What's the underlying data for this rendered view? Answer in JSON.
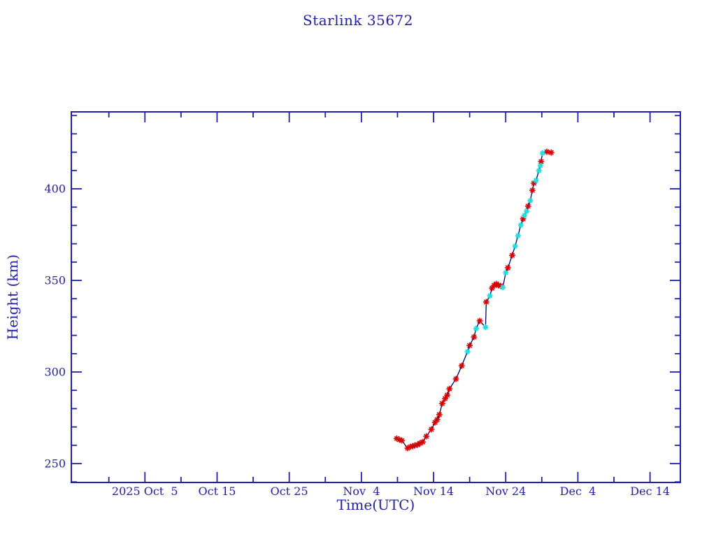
{
  "window": {
    "title": "Starlink 35672"
  },
  "chart_data": {
    "type": "line",
    "title": "Starlink 35672",
    "xlabel": "Time(UTC)",
    "ylabel": "Height (km)",
    "grid": false,
    "legend": null,
    "x_axis": {
      "units": "days relative to 2025 Oct 5 00:00 UTC",
      "min": -10.2,
      "max": 74.2,
      "major_tick_step_days": 10,
      "minor_tick_step_days": 5,
      "major_ticks": [
        {
          "day": 0,
          "label": "2025 Oct  5"
        },
        {
          "day": 10,
          "label": "Oct 15"
        },
        {
          "day": 20,
          "label": "Oct 25"
        },
        {
          "day": 30,
          "label": "Nov  4"
        },
        {
          "day": 40,
          "label": "Nov 14"
        },
        {
          "day": 50,
          "label": "Nov 24"
        },
        {
          "day": 60,
          "label": "Dec  4"
        },
        {
          "day": 70,
          "label": "Dec 14"
        }
      ]
    },
    "y_axis": {
      "units": "km",
      "min": 239.7,
      "max": 442.0,
      "major_ticks": [
        250,
        300,
        350,
        400
      ],
      "minor_tick_step": 10
    },
    "colors": {
      "background": "#ffffff",
      "axis": "#2020a8",
      "labels": "#2020a8",
      "line": "#000066",
      "red": "#d60000",
      "cyan": "#2adbdb"
    },
    "line_connects_all_points_in_time_order": true,
    "series_legend": [
      {
        "name": "red-asterisk-points",
        "marker": "asterisk",
        "color_key": "red"
      },
      {
        "name": "cyan-tracking-points",
        "marker": "asterisk-dot",
        "color_key": "cyan"
      }
    ],
    "points": [
      {
        "day": 34.9,
        "km": 263.7,
        "series": "red"
      },
      {
        "day": 35.3,
        "km": 263.0,
        "series": "red"
      },
      {
        "day": 35.6,
        "km": 262.6,
        "series": "red"
      },
      {
        "day": 36.4,
        "km": 258.4,
        "series": "red"
      },
      {
        "day": 36.8,
        "km": 259.2,
        "series": "red"
      },
      {
        "day": 37.1,
        "km": 259.5,
        "series": "red"
      },
      {
        "day": 37.4,
        "km": 259.9,
        "series": "red"
      },
      {
        "day": 37.8,
        "km": 260.3,
        "series": "red"
      },
      {
        "day": 38.1,
        "km": 261.1,
        "series": "red"
      },
      {
        "day": 38.5,
        "km": 261.8,
        "series": "red"
      },
      {
        "day": 39.0,
        "km": 264.9,
        "series": "red"
      },
      {
        "day": 39.7,
        "km": 268.7,
        "series": "red"
      },
      {
        "day": 40.2,
        "km": 272.5,
        "series": "red"
      },
      {
        "day": 40.5,
        "km": 274.0,
        "series": "red"
      },
      {
        "day": 40.8,
        "km": 276.7,
        "series": "red"
      },
      {
        "day": 41.2,
        "km": 282.8,
        "series": "red"
      },
      {
        "day": 41.6,
        "km": 285.5,
        "series": "red"
      },
      {
        "day": 41.9,
        "km": 287.4,
        "series": "red"
      },
      {
        "day": 42.2,
        "km": 290.8,
        "series": "red"
      },
      {
        "day": 43.1,
        "km": 296.2,
        "series": "red"
      },
      {
        "day": 43.9,
        "km": 303.4,
        "series": "red"
      },
      {
        "day": 44.7,
        "km": 311.1,
        "series": "cyan"
      },
      {
        "day": 45.0,
        "km": 314.5,
        "series": "red"
      },
      {
        "day": 45.6,
        "km": 319.1,
        "series": "red"
      },
      {
        "day": 45.9,
        "km": 323.7,
        "series": "cyan"
      },
      {
        "day": 46.4,
        "km": 327.9,
        "series": "red"
      },
      {
        "day": 47.2,
        "km": 324.4,
        "series": "cyan"
      },
      {
        "day": 47.3,
        "km": 338.2,
        "series": "red"
      },
      {
        "day": 47.8,
        "km": 341.6,
        "series": "cyan"
      },
      {
        "day": 48.1,
        "km": 345.8,
        "series": "red"
      },
      {
        "day": 48.4,
        "km": 347.3,
        "series": "red"
      },
      {
        "day": 48.7,
        "km": 348.1,
        "series": "red"
      },
      {
        "day": 49.0,
        "km": 347.3,
        "series": "red"
      },
      {
        "day": 49.3,
        "km": 347.0,
        "series": "red"
      },
      {
        "day": 49.6,
        "km": 346.2,
        "series": "cyan"
      },
      {
        "day": 50.0,
        "km": 354.2,
        "series": "cyan"
      },
      {
        "day": 50.3,
        "km": 356.9,
        "series": "red"
      },
      {
        "day": 50.9,
        "km": 363.7,
        "series": "red"
      },
      {
        "day": 51.3,
        "km": 368.7,
        "series": "cyan"
      },
      {
        "day": 51.7,
        "km": 374.4,
        "series": "cyan"
      },
      {
        "day": 52.1,
        "km": 380.2,
        "series": "cyan"
      },
      {
        "day": 52.4,
        "km": 383.6,
        "series": "red"
      },
      {
        "day": 52.6,
        "km": 385.5,
        "series": "cyan"
      },
      {
        "day": 52.9,
        "km": 387.8,
        "series": "cyan"
      },
      {
        "day": 53.1,
        "km": 390.5,
        "series": "red"
      },
      {
        "day": 53.4,
        "km": 393.5,
        "series": "cyan"
      },
      {
        "day": 53.7,
        "km": 399.2,
        "series": "red"
      },
      {
        "day": 53.9,
        "km": 403.1,
        "series": "red"
      },
      {
        "day": 54.2,
        "km": 404.6,
        "series": "cyan"
      },
      {
        "day": 54.6,
        "km": 409.9,
        "series": "cyan"
      },
      {
        "day": 54.8,
        "km": 412.6,
        "series": "cyan"
      },
      {
        "day": 54.9,
        "km": 414.9,
        "series": "red"
      },
      {
        "day": 55.1,
        "km": 419.5,
        "series": "cyan"
      },
      {
        "day": 55.7,
        "km": 420.2,
        "series": "red"
      },
      {
        "day": 56.3,
        "km": 419.8,
        "series": "red"
      }
    ]
  }
}
